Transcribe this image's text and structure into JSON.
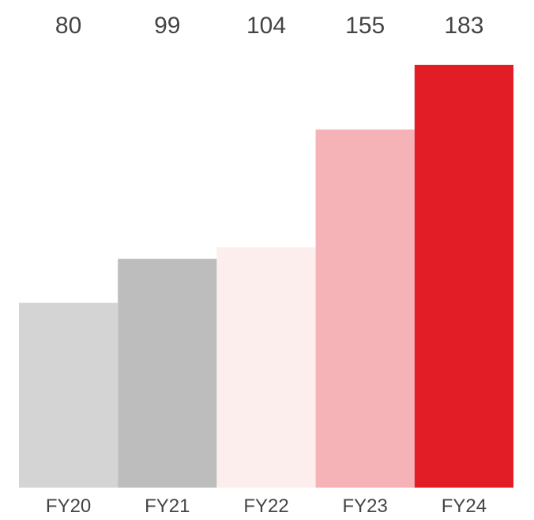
{
  "chart_data": {
    "type": "bar",
    "categories": [
      "FY20",
      "FY21",
      "FY22",
      "FY23",
      "FY24"
    ],
    "values": [
      80,
      99,
      104,
      155,
      183
    ],
    "data_labels": [
      "80",
      "99",
      "104",
      "155",
      "183"
    ],
    "colors": [
      "#d4d4d4",
      "#bdbdbd",
      "#fdeeee",
      "#f5b3b7",
      "#e21d25"
    ],
    "title": "",
    "xlabel": "",
    "ylabel": "",
    "ylim": [
      0,
      183
    ],
    "grid": false,
    "legend": "none"
  }
}
